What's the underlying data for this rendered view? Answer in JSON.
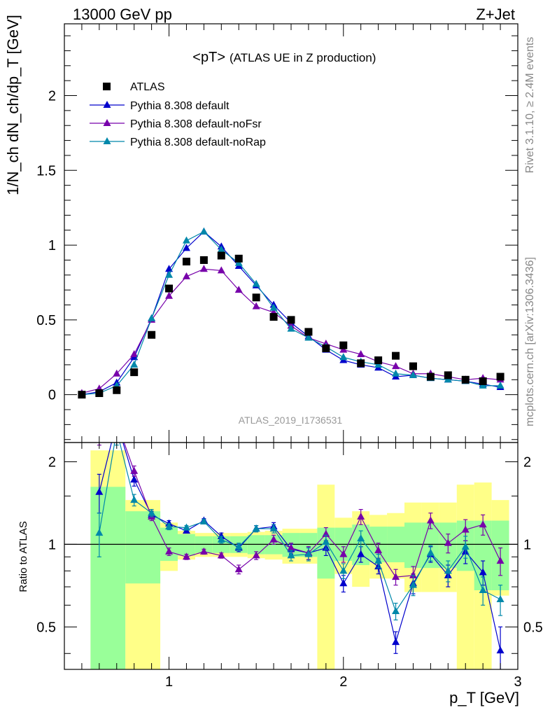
{
  "header": {
    "left": "13000 GeV pp",
    "right": "Z+Jet"
  },
  "side_labels": {
    "rivet": "Rivet 3.1.10, ≥ 2.4M events",
    "mcplots": "mcplots.cern.ch [arXiv:1306.3436]"
  },
  "chart_data": {
    "type": "scatter",
    "title": "<pT>",
    "subtitle": "(ATLAS UE in Z production)",
    "analysis_label": "ATLAS_2019_I1736531",
    "xlabel": "p_T [GeV]",
    "ylabel": "1/N_ch dN_ch/dp_T [GeV]",
    "ratio_ylabel": "Ratio to ATLAS",
    "xlim": [
      0.4,
      3.0
    ],
    "ylim": [
      -0.32,
      2.48
    ],
    "ratio_ylim": [
      0.35,
      2.35
    ],
    "ratio_scale": "log",
    "x_ticks": [
      1,
      2,
      3
    ],
    "y_ticks": [
      0,
      0.5,
      1,
      1.5,
      2
    ],
    "ratio_ticks": [
      0.5,
      1,
      2
    ],
    "legend_position": "top-left",
    "x": [
      0.5,
      0.6,
      0.7,
      0.8,
      0.9,
      1.0,
      1.1,
      1.2,
      1.3,
      1.4,
      1.5,
      1.6,
      1.7,
      1.8,
      1.9,
      2.0,
      2.1,
      2.2,
      2.3,
      2.4,
      2.5,
      2.6,
      2.7,
      2.8,
      2.9
    ],
    "data": {
      "name": "ATLAS",
      "color": "#000000",
      "values": [
        0.0,
        0.01,
        0.03,
        0.15,
        0.4,
        0.71,
        0.89,
        0.9,
        0.93,
        0.91,
        0.65,
        0.52,
        0.5,
        0.42,
        0.31,
        0.33,
        0.21,
        0.23,
        0.26,
        0.19,
        0.12,
        0.13,
        0.1,
        0.09,
        0.12
      ]
    },
    "series": [
      {
        "name": "Pythia 8.308 default",
        "color": "#0000cc",
        "values": [
          0.0,
          0.02,
          0.08,
          0.25,
          0.51,
          0.84,
          0.98,
          1.09,
          0.99,
          0.86,
          0.73,
          0.6,
          0.48,
          0.39,
          0.3,
          0.23,
          0.2,
          0.18,
          0.12,
          0.13,
          0.11,
          0.1,
          0.09,
          0.07,
          0.05
        ],
        "ratio": [
          null,
          1.55,
          2.8,
          1.72,
          1.28,
          1.19,
          1.12,
          1.22,
          1.07,
          0.97,
          1.14,
          1.16,
          0.96,
          0.93,
          0.97,
          0.72,
          0.92,
          0.83,
          0.44,
          0.72,
          0.92,
          0.77,
          0.94,
          0.79,
          0.41
        ],
        "ratio_err": [
          null,
          0.25,
          0.3,
          0.09,
          0.04,
          0.03,
          0.02,
          0.02,
          0.03,
          0.03,
          0.03,
          0.04,
          0.04,
          0.05,
          0.06,
          0.05,
          0.06,
          0.05,
          0.04,
          0.06,
          0.06,
          0.07,
          0.09,
          0.08,
          0.09
        ]
      },
      {
        "name": "Pythia 8.308 default-noFsr",
        "color": "#7700aa",
        "values": [
          0.01,
          0.04,
          0.14,
          0.27,
          0.5,
          0.66,
          0.79,
          0.84,
          0.83,
          0.7,
          0.59,
          0.55,
          0.46,
          0.38,
          0.34,
          0.3,
          0.27,
          0.22,
          0.19,
          0.14,
          0.14,
          0.12,
          0.1,
          0.11,
          0.1
        ],
        "ratio": [
          null,
          2.6,
          2.8,
          1.85,
          1.26,
          0.94,
          0.9,
          0.94,
          0.91,
          0.81,
          0.91,
          1.04,
          0.97,
          0.93,
          1.09,
          0.92,
          1.26,
          0.95,
          0.76,
          0.77,
          1.22,
          1.01,
          1.13,
          1.18,
          0.87
        ],
        "ratio_err": [
          null,
          0.3,
          0.3,
          0.08,
          0.04,
          0.03,
          0.02,
          0.02,
          0.02,
          0.03,
          0.03,
          0.04,
          0.04,
          0.05,
          0.06,
          0.06,
          0.08,
          0.06,
          0.05,
          0.06,
          0.08,
          0.08,
          0.1,
          0.1,
          0.1
        ]
      },
      {
        "name": "Pythia 8.308 default-noRap",
        "color": "#0088aa",
        "values": [
          0.0,
          0.01,
          0.06,
          0.2,
          0.51,
          0.8,
          1.03,
          1.09,
          0.97,
          0.88,
          0.74,
          0.58,
          0.44,
          0.38,
          0.32,
          0.25,
          0.22,
          0.2,
          0.14,
          0.13,
          0.11,
          0.1,
          0.09,
          0.06,
          0.06
        ],
        "ratio": [
          null,
          1.1,
          2.6,
          1.45,
          1.3,
          1.16,
          1.15,
          1.21,
          1.04,
          0.98,
          1.14,
          1.14,
          0.91,
          0.92,
          1.02,
          0.8,
          1.05,
          0.87,
          0.57,
          0.71,
          0.93,
          0.8,
          0.98,
          0.68,
          0.63
        ],
        "ratio_err": [
          null,
          0.2,
          0.3,
          0.07,
          0.04,
          0.03,
          0.02,
          0.02,
          0.03,
          0.03,
          0.03,
          0.04,
          0.04,
          0.05,
          0.06,
          0.05,
          0.07,
          0.05,
          0.04,
          0.06,
          0.06,
          0.07,
          0.09,
          0.08,
          0.08
        ]
      }
    ],
    "uncertainty_bands": {
      "inner_color": "#99ff99",
      "outer_color": "#ffff88",
      "bins": [
        {
          "x_low": 0.55,
          "x_high": 0.75,
          "inner": [
            0.3,
            1.62
          ],
          "outer": [
            0.3,
            2.2
          ]
        },
        {
          "x_low": 0.75,
          "x_high": 0.95,
          "inner": [
            0.72,
            1.32
          ],
          "outer": [
            0.35,
            1.45
          ]
        },
        {
          "x_low": 0.95,
          "x_high": 1.05,
          "inner": [
            0.87,
            1.15
          ],
          "outer": [
            0.8,
            1.2
          ]
        },
        {
          "x_low": 1.05,
          "x_high": 1.15,
          "inner": [
            0.91,
            1.09
          ],
          "outer": [
            0.88,
            1.12
          ]
        },
        {
          "x_low": 1.15,
          "x_high": 1.25,
          "inner": [
            0.93,
            1.07
          ],
          "outer": [
            0.9,
            1.1
          ]
        },
        {
          "x_low": 1.25,
          "x_high": 1.35,
          "inner": [
            0.93,
            1.07
          ],
          "outer": [
            0.9,
            1.1
          ]
        },
        {
          "x_low": 1.35,
          "x_high": 1.45,
          "inner": [
            0.93,
            1.07
          ],
          "outer": [
            0.9,
            1.1
          ]
        },
        {
          "x_low": 1.45,
          "x_high": 1.55,
          "inner": [
            0.92,
            1.08
          ],
          "outer": [
            0.89,
            1.11
          ]
        },
        {
          "x_low": 1.55,
          "x_high": 1.65,
          "inner": [
            0.92,
            1.08
          ],
          "outer": [
            0.88,
            1.12
          ]
        },
        {
          "x_low": 1.65,
          "x_high": 1.75,
          "inner": [
            0.9,
            1.1
          ],
          "outer": [
            0.85,
            1.14
          ]
        },
        {
          "x_low": 1.75,
          "x_high": 1.85,
          "inner": [
            0.9,
            1.1
          ],
          "outer": [
            0.85,
            1.14
          ]
        },
        {
          "x_low": 1.85,
          "x_high": 1.95,
          "inner": [
            0.75,
            1.15
          ],
          "outer": [
            0.35,
            1.65
          ]
        },
        {
          "x_low": 1.95,
          "x_high": 2.05,
          "inner": [
            0.87,
            1.15
          ],
          "outer": [
            0.78,
            1.25
          ]
        },
        {
          "x_low": 2.05,
          "x_high": 2.15,
          "inner": [
            0.84,
            1.18
          ],
          "outer": [
            0.7,
            1.32
          ]
        },
        {
          "x_low": 2.15,
          "x_high": 2.25,
          "inner": [
            0.86,
            1.16
          ],
          "outer": [
            0.75,
            1.28
          ]
        },
        {
          "x_low": 2.25,
          "x_high": 2.35,
          "inner": [
            0.86,
            1.16
          ],
          "outer": [
            0.75,
            1.3
          ]
        },
        {
          "x_low": 2.35,
          "x_high": 2.45,
          "inner": [
            0.82,
            1.2
          ],
          "outer": [
            0.67,
            1.42
          ]
        },
        {
          "x_low": 2.45,
          "x_high": 2.55,
          "inner": [
            0.82,
            1.2
          ],
          "outer": [
            0.67,
            1.42
          ]
        },
        {
          "x_low": 2.55,
          "x_high": 2.65,
          "inner": [
            0.82,
            1.2
          ],
          "outer": [
            0.67,
            1.42
          ]
        },
        {
          "x_low": 2.65,
          "x_high": 2.75,
          "inner": [
            0.8,
            1.22
          ],
          "outer": [
            0.3,
            1.65
          ]
        },
        {
          "x_low": 2.75,
          "x_high": 2.85,
          "inner": [
            0.68,
            1.22
          ],
          "outer": [
            0.3,
            1.68
          ]
        },
        {
          "x_low": 2.85,
          "x_high": 2.95,
          "inner": [
            0.68,
            1.22
          ],
          "outer": [
            0.65,
            1.45
          ]
        }
      ]
    }
  }
}
